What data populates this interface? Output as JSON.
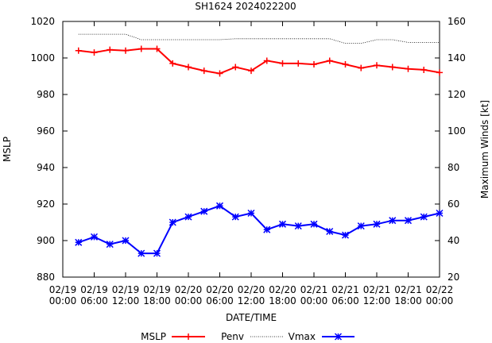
{
  "chart_data": {
    "type": "line",
    "title": "SH1624 2024022200",
    "xlabel": "DATE/TIME",
    "ylabel": "MSLP",
    "y2label": "Maximum Winds [kt]",
    "ylim": [
      880,
      1020
    ],
    "y2lim": [
      20,
      160
    ],
    "y_ticks": [
      "880",
      "900",
      "920",
      "940",
      "960",
      "980",
      "1000",
      "1020"
    ],
    "y2_ticks": [
      "20",
      "40",
      "60",
      "80",
      "100",
      "120",
      "140",
      "160"
    ],
    "x_tick_labels": [
      [
        "02/19",
        "00:00"
      ],
      [
        "02/19",
        "06:00"
      ],
      [
        "02/19",
        "12:00"
      ],
      [
        "02/19",
        "18:00"
      ],
      [
        "02/20",
        "00:00"
      ],
      [
        "02/20",
        "06:00"
      ],
      [
        "02/20",
        "12:00"
      ],
      [
        "02/20",
        "18:00"
      ],
      [
        "02/21",
        "00:00"
      ],
      [
        "02/21",
        "06:00"
      ],
      [
        "02/21",
        "12:00"
      ],
      [
        "02/21",
        "18:00"
      ],
      [
        "02/22",
        "00:00"
      ]
    ],
    "x_hours": [
      3,
      6,
      9,
      12,
      15,
      18,
      21,
      24,
      27,
      30,
      33,
      36,
      39,
      42,
      45,
      48,
      51,
      54,
      57,
      60,
      63,
      66,
      69,
      72
    ],
    "grid": false,
    "legend_position": "bottom",
    "series": [
      {
        "name": "MSLP",
        "axis": "left",
        "color": "#ff0000",
        "marker": "plus",
        "values": [
          1004,
          1003,
          1004.5,
          1004,
          1005,
          1005,
          997,
          995,
          993,
          991.5,
          995,
          993,
          998.5,
          997,
          997,
          996.5,
          998.5,
          996.5,
          994.5,
          996,
          995,
          994,
          993.5,
          992
        ]
      },
      {
        "name": "Penv",
        "axis": "left",
        "color": "#000000",
        "style": "dotted",
        "values": [
          1013,
          1013,
          1013,
          1013,
          1010,
          1010,
          1010,
          1010,
          1010,
          1010,
          1010.5,
          1010.5,
          1010.5,
          1010.5,
          1010.5,
          1010.5,
          1010.5,
          1008,
          1008,
          1010,
          1010,
          1008.5,
          1008.5,
          1008.5
        ]
      },
      {
        "name": "Vmax",
        "axis": "right",
        "color": "#0000ff",
        "marker": "star",
        "values": [
          39,
          42,
          38,
          40,
          33,
          33,
          50,
          53,
          56,
          59,
          53,
          55,
          46,
          49,
          48,
          49,
          45,
          43,
          48,
          49,
          51,
          51,
          53,
          55
        ]
      }
    ]
  }
}
